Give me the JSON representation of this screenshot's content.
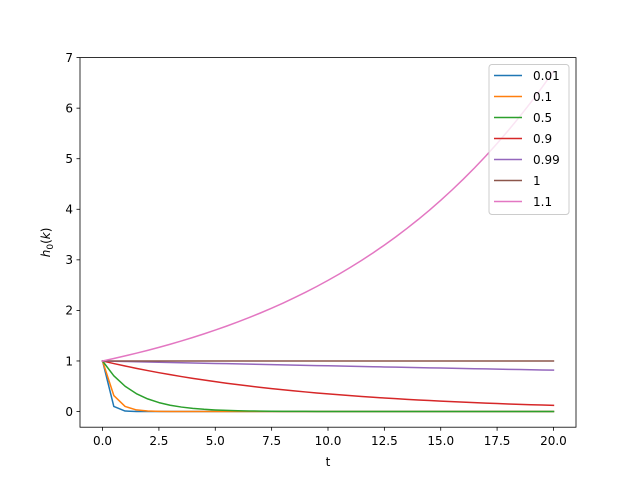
{
  "chart_data": {
    "type": "line",
    "xlabel": "t",
    "ylabel": "h0(k)",
    "xlim": [
      -1.0,
      21.0
    ],
    "ylim": [
      -0.31,
      7.0
    ],
    "xticks": [
      0.0,
      2.5,
      5.0,
      7.5,
      10.0,
      12.5,
      15.0,
      17.5,
      20.0
    ],
    "xtick_labels": [
      "0.0",
      "2.5",
      "5.0",
      "7.5",
      "10.0",
      "12.5",
      "15.0",
      "17.5",
      "20.0"
    ],
    "yticks": [
      0,
      1,
      2,
      3,
      4,
      5,
      6,
      7
    ],
    "ytick_labels": [
      "0",
      "1",
      "2",
      "3",
      "4",
      "5",
      "6",
      "7"
    ],
    "grid": false,
    "legend_position": "top-right",
    "x": [
      0,
      0.5,
      1,
      1.5,
      2,
      2.5,
      3,
      3.5,
      4,
      4.5,
      5,
      5.5,
      6,
      6.5,
      7,
      7.5,
      8,
      8.5,
      9,
      9.5,
      10,
      10.5,
      11,
      11.5,
      12,
      12.5,
      13,
      13.5,
      14,
      14.5,
      15,
      15.5,
      16,
      16.5,
      17,
      17.5,
      18,
      18.5,
      19,
      19.5,
      20
    ],
    "series": [
      {
        "name": "0.01",
        "color": "#1f77b4",
        "values": [
          1,
          0.1,
          0.01,
          0.001,
          0,
          0,
          0,
          0,
          0,
          0,
          0,
          0,
          0,
          0,
          0,
          0,
          0,
          0,
          0,
          0,
          0,
          0,
          0,
          0,
          0,
          0,
          0,
          0,
          0,
          0,
          0,
          0,
          0,
          0,
          0,
          0,
          0,
          0,
          0,
          0,
          0
        ]
      },
      {
        "name": "0.1",
        "color": "#ff7f0e",
        "values": [
          1,
          0.3162,
          0.1,
          0.0316,
          0.01,
          0.0032,
          0.001,
          0.0003,
          0.0001,
          0,
          0,
          0,
          0,
          0,
          0,
          0,
          0,
          0,
          0,
          0,
          0,
          0,
          0,
          0,
          0,
          0,
          0,
          0,
          0,
          0,
          0,
          0,
          0,
          0,
          0,
          0,
          0,
          0,
          0,
          0,
          0
        ]
      },
      {
        "name": "0.5",
        "color": "#2ca02c",
        "values": [
          1,
          0.7071,
          0.5,
          0.3536,
          0.25,
          0.1768,
          0.125,
          0.0884,
          0.0625,
          0.0442,
          0.0313,
          0.0221,
          0.0156,
          0.011,
          0.0078,
          0.0055,
          0.0039,
          0.0028,
          0.002,
          0.0014,
          0.001,
          0.0007,
          0.0005,
          0.0003,
          0.0002,
          0.0002,
          0.0001,
          0.0001,
          0.0001,
          0,
          0,
          0,
          0,
          0,
          0,
          0,
          0,
          0,
          0,
          0,
          0
        ]
      },
      {
        "name": "0.9",
        "color": "#d62728",
        "values": [
          1,
          0.9487,
          0.9,
          0.8538,
          0.81,
          0.7684,
          0.729,
          0.6916,
          0.6561,
          0.6225,
          0.5905,
          0.5602,
          0.5314,
          0.5042,
          0.4783,
          0.4537,
          0.4305,
          0.4084,
          0.3874,
          0.3675,
          0.3487,
          0.3308,
          0.3138,
          0.2977,
          0.2824,
          0.2679,
          0.2542,
          0.2412,
          0.2288,
          0.2171,
          0.2059,
          0.1953,
          0.1853,
          0.1758,
          0.1668,
          0.1582,
          0.1501,
          0.1424,
          0.1351,
          0.1282,
          0.1216
        ]
      },
      {
        "name": "0.99",
        "color": "#9467bd",
        "values": [
          1,
          0.995,
          0.99,
          0.985,
          0.9801,
          0.9752,
          0.9703,
          0.9655,
          0.9606,
          0.9558,
          0.951,
          0.9463,
          0.9415,
          0.9368,
          0.9321,
          0.9274,
          0.9227,
          0.9181,
          0.9135,
          0.9089,
          0.9044,
          0.8998,
          0.8953,
          0.8908,
          0.8864,
          0.8819,
          0.8775,
          0.8731,
          0.8687,
          0.8644,
          0.8601,
          0.8557,
          0.8515,
          0.8472,
          0.8429,
          0.8387,
          0.8345,
          0.8303,
          0.8262,
          0.822,
          0.8179
        ]
      },
      {
        "name": "1",
        "color": "#8c564b",
        "values": [
          1,
          1,
          1,
          1,
          1,
          1,
          1,
          1,
          1,
          1,
          1,
          1,
          1,
          1,
          1,
          1,
          1,
          1,
          1,
          1,
          1,
          1,
          1,
          1,
          1,
          1,
          1,
          1,
          1,
          1,
          1,
          1,
          1,
          1,
          1,
          1,
          1,
          1,
          1,
          1,
          1
        ]
      },
      {
        "name": "1.1",
        "color": "#e377c2",
        "values": [
          1,
          1.0488,
          1.1,
          1.1537,
          1.21,
          1.2691,
          1.331,
          1.396,
          1.4641,
          1.5356,
          1.6105,
          1.6891,
          1.7716,
          1.8581,
          1.9487,
          2.0439,
          2.1436,
          2.2483,
          2.3579,
          2.4731,
          2.5937,
          2.7204,
          2.8531,
          2.9924,
          3.1384,
          3.2917,
          3.4523,
          3.6209,
          3.7975,
          3.983,
          4.1772,
          4.3813,
          4.595,
          4.8194,
          5.0545,
          5.3014,
          5.5599,
          5.8315,
          6.1159,
          6.4146,
          6.7275
        ]
      }
    ]
  }
}
